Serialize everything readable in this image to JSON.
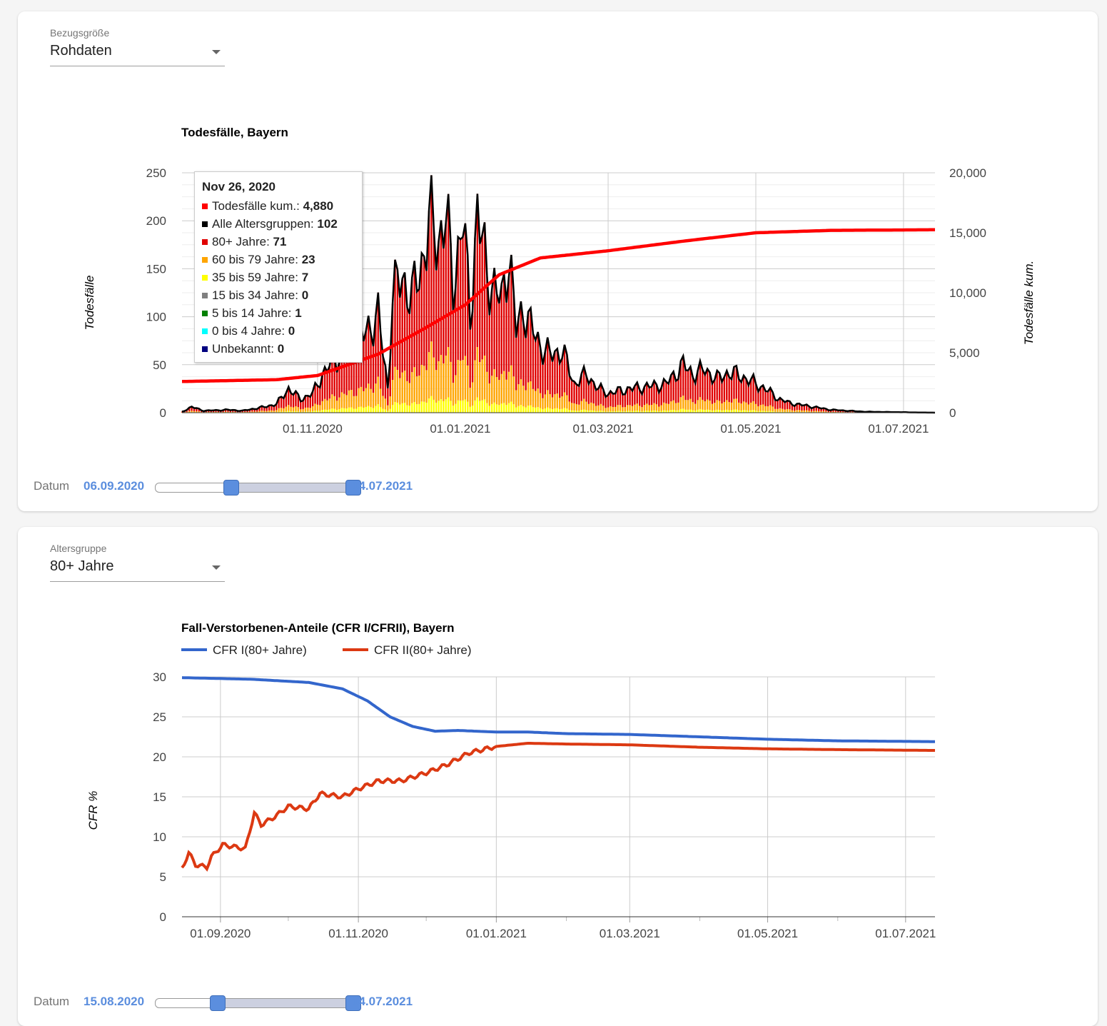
{
  "card1": {
    "select": {
      "label": "Bezugsgröße",
      "value": "Rohdaten"
    },
    "slider": {
      "label": "Datum",
      "start": "06.09.2020",
      "end": "14.07.2021",
      "low_fraction": 0.38,
      "high_fraction": 1.0
    }
  },
  "card2": {
    "select": {
      "label": "Altersgruppe",
      "value": "80+ Jahre"
    },
    "slider": {
      "label": "Datum",
      "start": "15.08.2020",
      "end": "14.07.2021",
      "low_fraction": 0.31,
      "high_fraction": 1.0
    }
  },
  "tooltip": {
    "title": "Nov 26, 2020",
    "rows": [
      {
        "label": "Todesfälle kum.: ",
        "value": "4,880",
        "color": "#ff0000"
      },
      {
        "label": "Alle Altersgruppen: ",
        "value": "102",
        "color": "#000000"
      },
      {
        "label": "80+ Jahre: ",
        "value": "71",
        "color": "#e00000"
      },
      {
        "label": "60 bis 79 Jahre: ",
        "value": "23",
        "color": "#ffa500"
      },
      {
        "label": "35 bis 59 Jahre: ",
        "value": "7",
        "color": "#ffff00"
      },
      {
        "label": "15 bis 34 Jahre: ",
        "value": "0",
        "color": "#808080"
      },
      {
        "label": "5 bis 14 Jahre: ",
        "value": "1",
        "color": "#008000"
      },
      {
        "label": "0 bis 4 Jahre: ",
        "value": "0",
        "color": "#00ffff"
      },
      {
        "label": "Unbekannt: ",
        "value": "0",
        "color": "#000080"
      }
    ]
  },
  "chart_data": [
    {
      "type": "bar",
      "title": "Todesfälle, Bayern",
      "ylabel": "Todesfälle",
      "y2label": "Todesfälle kum.",
      "ylim": [
        0,
        250
      ],
      "y2lim": [
        0,
        20000
      ],
      "yticks": [
        "0",
        "50",
        "100",
        "150",
        "200",
        "250"
      ],
      "y2ticks": [
        "0",
        "5,000",
        "10,000",
        "15,000",
        "20,000"
      ],
      "xticks": [
        "01.11.2020",
        "01.01.2021",
        "01.03.2021",
        "01.05.2021",
        "01.07.2021"
      ],
      "x_start": "2020-09-06",
      "x_end": "2021-07-14",
      "series_colors": {
        "80+ Jahre": "#e00000",
        "60 bis 79 Jahre": "#ffa500",
        "35 bis 59 Jahre": "#ffff00",
        "Alle Altersgruppen": "#000000",
        "Todesfälle kum.": "#ff0000"
      },
      "series": [
        {
          "name": "Alle Altersgruppen",
          "keypoints": [
            [
              "2020-09-06",
              1
            ],
            [
              "2020-09-10",
              6
            ],
            [
              "2020-09-15",
              2
            ],
            [
              "2020-09-25",
              3
            ],
            [
              "2020-10-01",
              2
            ],
            [
              "2020-10-10",
              6
            ],
            [
              "2020-10-15",
              9
            ],
            [
              "2020-10-20",
              25
            ],
            [
              "2020-10-25",
              14
            ],
            [
              "2020-10-30",
              20
            ],
            [
              "2020-11-03",
              40
            ],
            [
              "2020-11-08",
              55
            ],
            [
              "2020-11-15",
              70
            ],
            [
              "2020-11-20",
              80
            ],
            [
              "2020-11-26",
              102
            ],
            [
              "2020-11-30",
              25
            ],
            [
              "2020-12-02",
              125
            ],
            [
              "2020-12-06",
              140
            ],
            [
              "2020-12-10",
              120
            ],
            [
              "2020-12-14",
              155
            ],
            [
              "2020-12-17",
              198
            ],
            [
              "2020-12-21",
              180
            ],
            [
              "2020-12-24",
              208
            ],
            [
              "2020-12-27",
              130
            ],
            [
              "2020-12-31",
              205
            ],
            [
              "2021-01-03",
              100
            ],
            [
              "2021-01-06",
              210
            ],
            [
              "2021-01-10",
              145
            ],
            [
              "2021-01-13",
              130
            ],
            [
              "2021-01-16",
              115
            ],
            [
              "2021-01-19",
              170
            ],
            [
              "2021-01-22",
              85
            ],
            [
              "2021-01-25",
              110
            ],
            [
              "2021-01-28",
              90
            ],
            [
              "2021-02-01",
              70
            ],
            [
              "2021-02-05",
              60
            ],
            [
              "2021-02-10",
              65
            ],
            [
              "2021-02-15",
              30
            ],
            [
              "2021-02-20",
              40
            ],
            [
              "2021-02-25",
              25
            ],
            [
              "2021-03-01",
              20
            ],
            [
              "2021-03-10",
              25
            ],
            [
              "2021-03-20",
              28
            ],
            [
              "2021-03-25",
              30
            ],
            [
              "2021-04-01",
              50
            ],
            [
              "2021-04-05",
              40
            ],
            [
              "2021-04-10",
              45
            ],
            [
              "2021-04-15",
              35
            ],
            [
              "2021-04-20",
              42
            ],
            [
              "2021-04-25",
              38
            ],
            [
              "2021-05-01",
              30
            ],
            [
              "2021-05-05",
              25
            ],
            [
              "2021-05-10",
              15
            ],
            [
              "2021-05-15",
              10
            ],
            [
              "2021-05-20",
              8
            ],
            [
              "2021-06-01",
              3
            ],
            [
              "2021-06-15",
              1
            ],
            [
              "2021-07-14",
              0
            ]
          ]
        },
        {
          "name": "Todesfälle kum.",
          "keypoints": [
            [
              "2020-09-06",
              2600
            ],
            [
              "2020-10-15",
              2750
            ],
            [
              "2020-11-01",
              3100
            ],
            [
              "2020-11-26",
              4880
            ],
            [
              "2020-12-15",
              7000
            ],
            [
              "2021-01-01",
              9000
            ],
            [
              "2021-01-15",
              11500
            ],
            [
              "2021-02-01",
              12900
            ],
            [
              "2021-03-01",
              13500
            ],
            [
              "2021-04-01",
              14300
            ],
            [
              "2021-05-01",
              15000
            ],
            [
              "2021-06-01",
              15200
            ],
            [
              "2021-07-14",
              15250
            ]
          ]
        }
      ]
    },
    {
      "type": "line",
      "title": "Fall-Verstorbenen-Anteile (CFR I/CFRII), Bayern",
      "ylabel": "CFR %",
      "ylim": [
        0,
        30
      ],
      "yticks": [
        "0",
        "5",
        "10",
        "15",
        "20",
        "25",
        "30"
      ],
      "xticks": [
        "01.09.2020",
        "01.11.2020",
        "01.01.2021",
        "01.03.2021",
        "01.05.2021",
        "01.07.2021"
      ],
      "x_start": "2020-08-15",
      "x_end": "2021-07-14",
      "series": [
        {
          "name": "CFR I(80+ Jahre)",
          "color": "#3366cc",
          "keypoints": [
            [
              "2020-08-15",
              29.9
            ],
            [
              "2020-09-15",
              29.7
            ],
            [
              "2020-10-10",
              29.3
            ],
            [
              "2020-10-25",
              28.5
            ],
            [
              "2020-11-05",
              27.0
            ],
            [
              "2020-11-15",
              25.0
            ],
            [
              "2020-11-25",
              23.8
            ],
            [
              "2020-12-05",
              23.2
            ],
            [
              "2020-12-15",
              23.3
            ],
            [
              "2021-01-01",
              23.1
            ],
            [
              "2021-01-15",
              23.1
            ],
            [
              "2021-02-01",
              22.9
            ],
            [
              "2021-03-01",
              22.8
            ],
            [
              "2021-04-01",
              22.5
            ],
            [
              "2021-05-01",
              22.2
            ],
            [
              "2021-06-01",
              22.0
            ],
            [
              "2021-07-14",
              21.9
            ]
          ]
        },
        {
          "name": "CFR II(80+ Jahre)",
          "color": "#dc3912",
          "keypoints": [
            [
              "2020-08-15",
              6.0
            ],
            [
              "2020-08-18",
              8.0
            ],
            [
              "2020-08-21",
              6.5
            ],
            [
              "2020-08-26",
              6.2
            ],
            [
              "2020-08-28",
              7.5
            ],
            [
              "2020-09-02",
              9.0
            ],
            [
              "2020-09-08",
              8.7
            ],
            [
              "2020-09-12",
              8.5
            ],
            [
              "2020-09-16",
              13.0
            ],
            [
              "2020-09-19",
              11.5
            ],
            [
              "2020-09-25",
              12.5
            ],
            [
              "2020-10-01",
              13.8
            ],
            [
              "2020-10-10",
              13.5
            ],
            [
              "2020-10-15",
              15.4
            ],
            [
              "2020-10-25",
              15.0
            ],
            [
              "2020-11-01",
              16.0
            ],
            [
              "2020-11-10",
              17.0
            ],
            [
              "2020-11-20",
              17.0
            ],
            [
              "2020-12-01",
              18.0
            ],
            [
              "2020-12-10",
              19.0
            ],
            [
              "2020-12-20",
              20.5
            ],
            [
              "2021-01-01",
              21.3
            ],
            [
              "2021-01-15",
              21.7
            ],
            [
              "2021-02-01",
              21.6
            ],
            [
              "2021-03-01",
              21.5
            ],
            [
              "2021-04-01",
              21.2
            ],
            [
              "2021-05-01",
              21.0
            ],
            [
              "2021-06-01",
              20.9
            ],
            [
              "2021-07-14",
              20.8
            ]
          ]
        }
      ]
    }
  ]
}
